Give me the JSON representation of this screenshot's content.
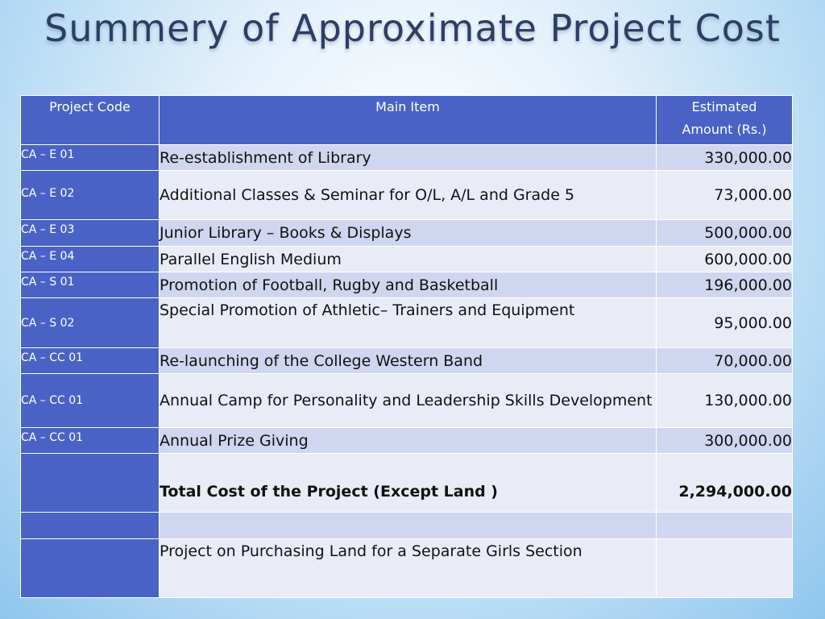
{
  "title": "Summery of Approximate Project Cost",
  "table": {
    "headers": {
      "code": "Project Code",
      "item": "Main Item",
      "amount_line1": "Estimated",
      "amount_line2": "Amount (Rs.)"
    },
    "rows": [
      {
        "code": "CA – E 01",
        "item": "Re-establishment of Library",
        "amount": "330,000.00"
      },
      {
        "code": "CA – E 02",
        "item": "Additional Classes & Seminar for O/L,  A/L and Grade 5",
        "amount": "73,000.00"
      },
      {
        "code": "CA – E 03",
        "item": "Junior Library – Books & Displays",
        "amount": "500,000.00"
      },
      {
        "code": "CA – E 04",
        "item": "Parallel English Medium",
        "amount": "600,000.00"
      },
      {
        "code": "CA – S 01",
        "item": "Promotion of Football, Rugby and Basketball",
        "amount": "196,000.00"
      },
      {
        "code": "CA – S 02",
        "item": "Special Promotion of Athletic– Trainers and Equipment",
        "amount": "95,000.00"
      },
      {
        "code": "CA – CC 01",
        "item": "Re-launching of the College Western Band",
        "amount": "70,000.00"
      },
      {
        "code": "CA – CC 01",
        "item": "Annual Camp for Personality and Leadership Skills Development",
        "amount": "130,000.00"
      },
      {
        "code": "CA – CC 01",
        "item": "Annual Prize Giving",
        "amount": "300,000.00"
      }
    ],
    "total": {
      "label": "Total  Cost of the Project (Except Land )",
      "amount": "2,294,000.00"
    },
    "land": {
      "item": "Project on Purchasing Land for a Separate Girls Section"
    }
  }
}
